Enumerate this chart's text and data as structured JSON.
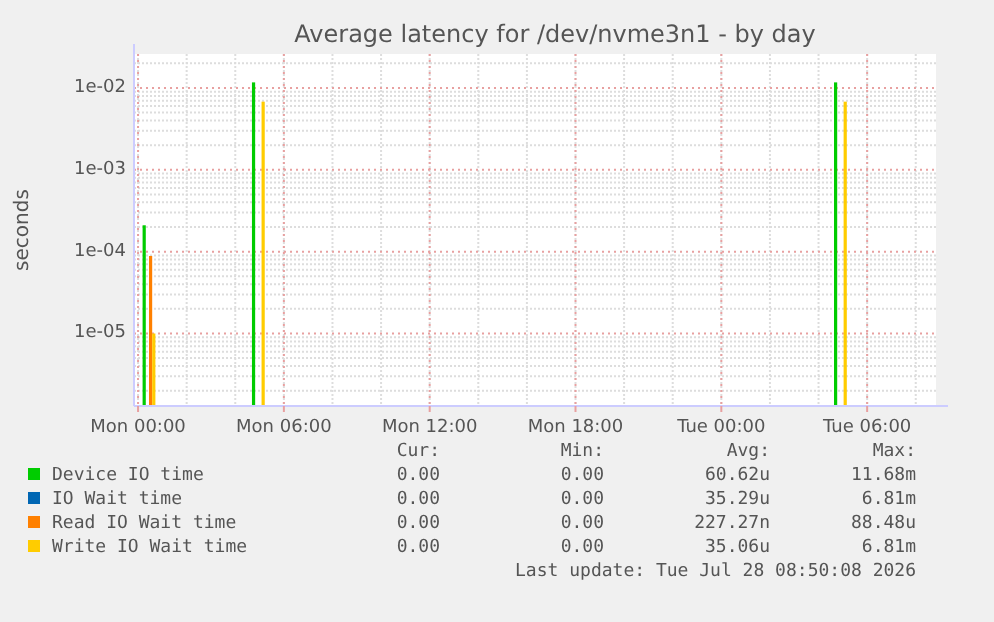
{
  "chart_data": {
    "type": "bar",
    "title": "Average latency for /dev/nvme3n1 - by day",
    "ylabel": "seconds",
    "log": "y",
    "grid": true,
    "legend": "bottom",
    "xlim": [
      "2026-07-26T23:50",
      "2026-07-28T08:50"
    ],
    "ylim": [
      1.3e-06,
      0.026
    ],
    "xticks": [
      {
        "value": "2026-07-27T00:00",
        "label": "Mon 00:00"
      },
      {
        "value": "2026-07-27T06:00",
        "label": "Mon 06:00"
      },
      {
        "value": "2026-07-27T12:00",
        "label": "Mon 12:00"
      },
      {
        "value": "2026-07-27T18:00",
        "label": "Mon 18:00"
      },
      {
        "value": "2026-07-28T00:00",
        "label": "Tue 00:00"
      },
      {
        "value": "2026-07-28T06:00",
        "label": "Tue 06:00"
      }
    ],
    "yticks": [
      {
        "value": 1e-05,
        "label": "1e-05"
      },
      {
        "value": 0.0001,
        "label": "1e-04"
      },
      {
        "value": 0.001,
        "label": "1e-03"
      },
      {
        "value": 0.01,
        "label": "1e-02"
      }
    ],
    "x": [
      "2026-07-27T00:27",
      "2026-07-27T04:57",
      "2026-07-28T04:54"
    ],
    "series": [
      {
        "name": "Device IO time",
        "color": "#00cc00",
        "values": [
          0.00021,
          0.0117,
          0.0117
        ]
      },
      {
        "name": "IO Wait time",
        "color": "#0066b3",
        "values": [
          null,
          null,
          null
        ]
      },
      {
        "name": "Read IO Wait time",
        "color": "#ff8000",
        "values": [
          8.85e-05,
          null,
          null
        ]
      },
      {
        "name": "Write IO Wait time",
        "color": "#ffcc00",
        "values": [
          1e-05,
          0.0068,
          0.0068
        ]
      }
    ],
    "annotations": [
      "Cur:",
      "Min:",
      "Avg:",
      "Max:",
      "0.00",
      "0.00",
      "60.62u",
      "11.68m",
      "0.00",
      "0.00",
      "35.29u",
      "6.81m",
      "0.00",
      "0.00",
      "227.27n",
      "88.48u",
      "0.00",
      "0.00",
      "35.06u",
      "6.81m",
      "Last update: Tue Jul 28 08:50:08 2026"
    ]
  }
}
